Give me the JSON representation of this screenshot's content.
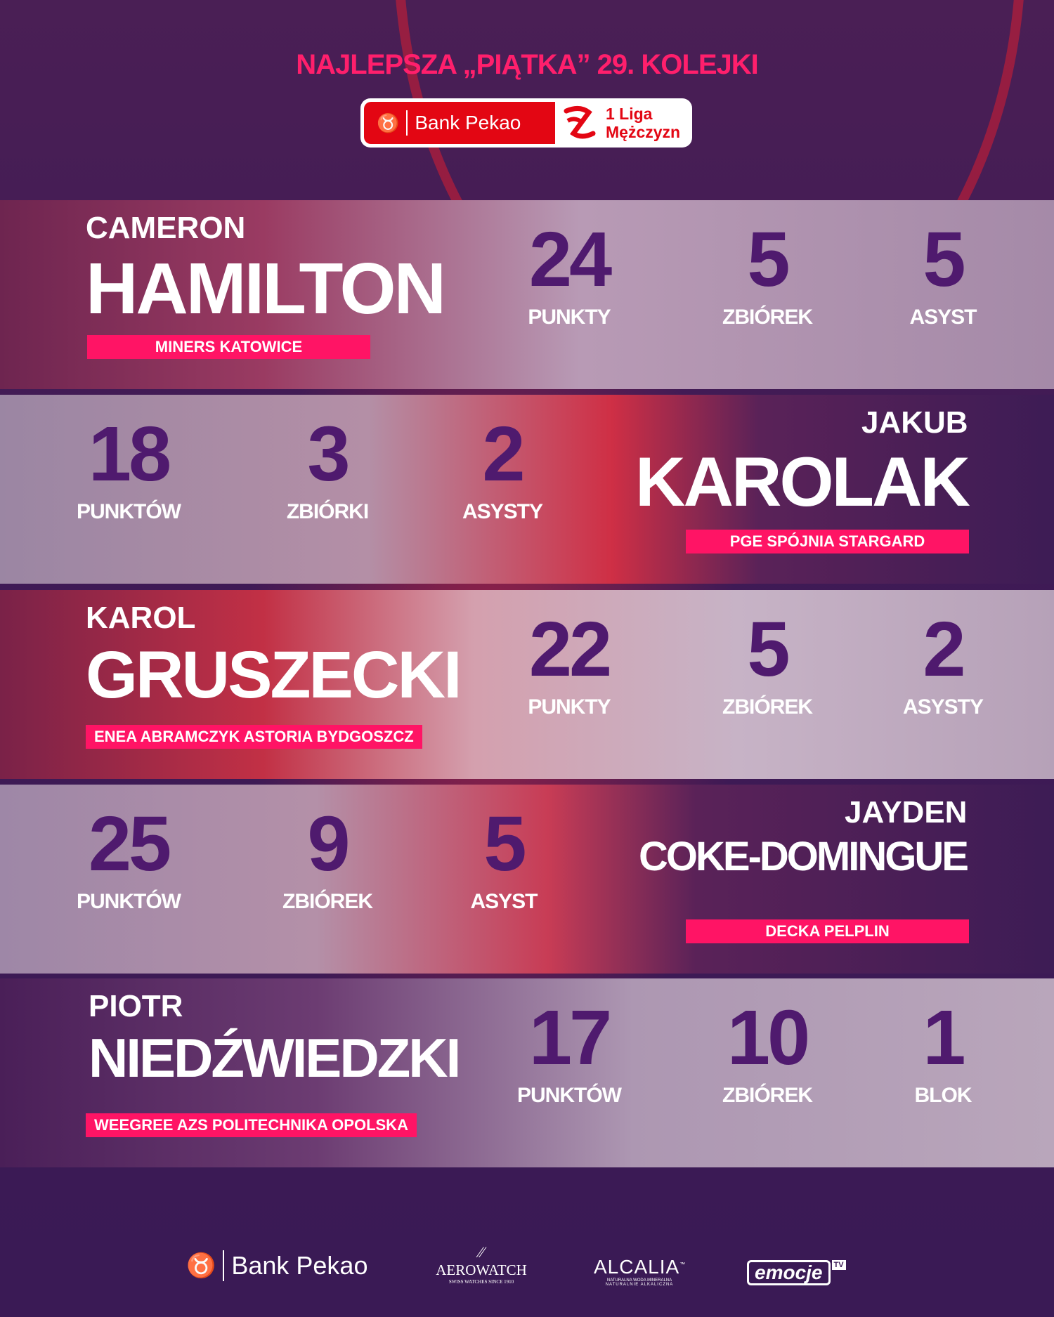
{
  "header": {
    "title": "NAJLEPSZA „PIĄTKA” 29. KOLEJKI",
    "badge": {
      "bank": "Bank Pekao",
      "league_line1": "1 Liga",
      "league_line2": "Mężczyzn"
    }
  },
  "players": [
    {
      "first": "CAMERON",
      "last": "HAMILTON",
      "team": "MINERS KATOWICE",
      "stats": [
        {
          "value": "24",
          "label": "PUNKTY"
        },
        {
          "value": "5",
          "label": "ZBIÓREK"
        },
        {
          "value": "5",
          "label": "ASYST"
        }
      ]
    },
    {
      "first": "JAKUB",
      "last": "KAROLAK",
      "team": "PGE SPÓJNIA STARGARD",
      "stats": [
        {
          "value": "18",
          "label": "PUNKTÓW"
        },
        {
          "value": "3",
          "label": "ZBIÓRKI"
        },
        {
          "value": "2",
          "label": "ASYSTY"
        }
      ]
    },
    {
      "first": "KAROL",
      "last": "GRUSZECKI",
      "team": "ENEA ABRAMCZYK ASTORIA BYDGOSZCZ",
      "stats": [
        {
          "value": "22",
          "label": "PUNKTY"
        },
        {
          "value": "5",
          "label": "ZBIÓREK"
        },
        {
          "value": "2",
          "label": "ASYSTY"
        }
      ]
    },
    {
      "first": "JAYDEN",
      "last": "COKE-DOMINGUE",
      "team": "DECKA PELPLIN",
      "stats": [
        {
          "value": "25",
          "label": "PUNKTÓW"
        },
        {
          "value": "9",
          "label": "ZBIÓREK"
        },
        {
          "value": "5",
          "label": "ASYST"
        }
      ]
    },
    {
      "first": "PIOTR",
      "last": "NIEDŹWIEDZKI",
      "team": "WEEGREE AZS POLITECHNIKA OPOLSKA",
      "stats": [
        {
          "value": "17",
          "label": "PUNKTÓW"
        },
        {
          "value": "10",
          "label": "ZBIÓREK"
        },
        {
          "value": "1",
          "label": "BLOK"
        }
      ]
    }
  ],
  "sponsors": {
    "bank": "Bank Pekao",
    "aerowatch": "AEROWATCH",
    "aerowatch_tag": "SWISS WATCHES SINCE 1910",
    "alcalia": "ALCALIA",
    "alcalia_tm": "™",
    "alcalia_tag1": "NATURALNA WODA MINERALNA",
    "alcalia_tag2": "NATURALNIE ALKALICZNA",
    "emocje": "emocje",
    "emocje_tv": "TV"
  },
  "colors": {
    "accent": "#ff1465",
    "background": "#3a1a52",
    "stat_number": "#4f1a6e",
    "bank_red": "#e30613"
  }
}
